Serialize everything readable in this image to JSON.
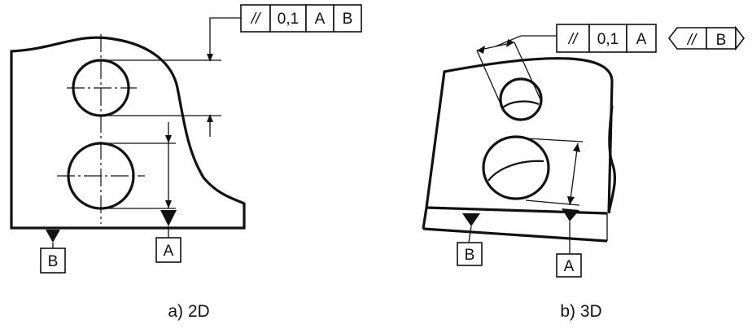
{
  "figure_a": {
    "tolerance_frame": {
      "symbol": "//",
      "value": "0,1",
      "datum_1": "A",
      "datum_2": "B"
    },
    "datum_b": "B",
    "datum_a": "A",
    "caption": "a) 2D"
  },
  "figure_b": {
    "tolerance_frame": {
      "symbol": "//",
      "value": "0,1",
      "datum_1": "A"
    },
    "indicator": {
      "symbol": "//",
      "datum": "B"
    },
    "datum_b": "B",
    "datum_a": "A",
    "caption": "b) 3D"
  }
}
